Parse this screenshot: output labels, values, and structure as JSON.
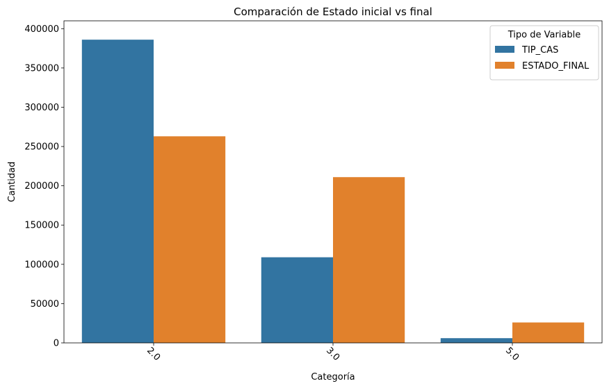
{
  "chart_data": {
    "type": "bar",
    "title": "Comparación de Estado inicial vs final",
    "xlabel": "Categoría",
    "ylabel": "Cantidad",
    "categories": [
      "2.0",
      "3.0",
      "5.0"
    ],
    "series": [
      {
        "name": "TIP_CAS",
        "values": [
          386000,
          109000,
          6000
        ],
        "color": "#3274a1"
      },
      {
        "name": "ESTADO_FINAL",
        "values": [
          263000,
          211000,
          26000
        ],
        "color": "#e1812c"
      }
    ],
    "ylim": [
      0,
      410000
    ],
    "yticks": [
      0,
      50000,
      100000,
      150000,
      200000,
      250000,
      300000,
      350000,
      400000
    ],
    "ytick_labels": [
      "0",
      "50000",
      "100000",
      "150000",
      "200000",
      "250000",
      "300000",
      "350000",
      "400000"
    ],
    "xtick_rotation": 45,
    "grid": false,
    "legend": {
      "title": "Tipo de Variable",
      "placement": "top-right"
    }
  }
}
